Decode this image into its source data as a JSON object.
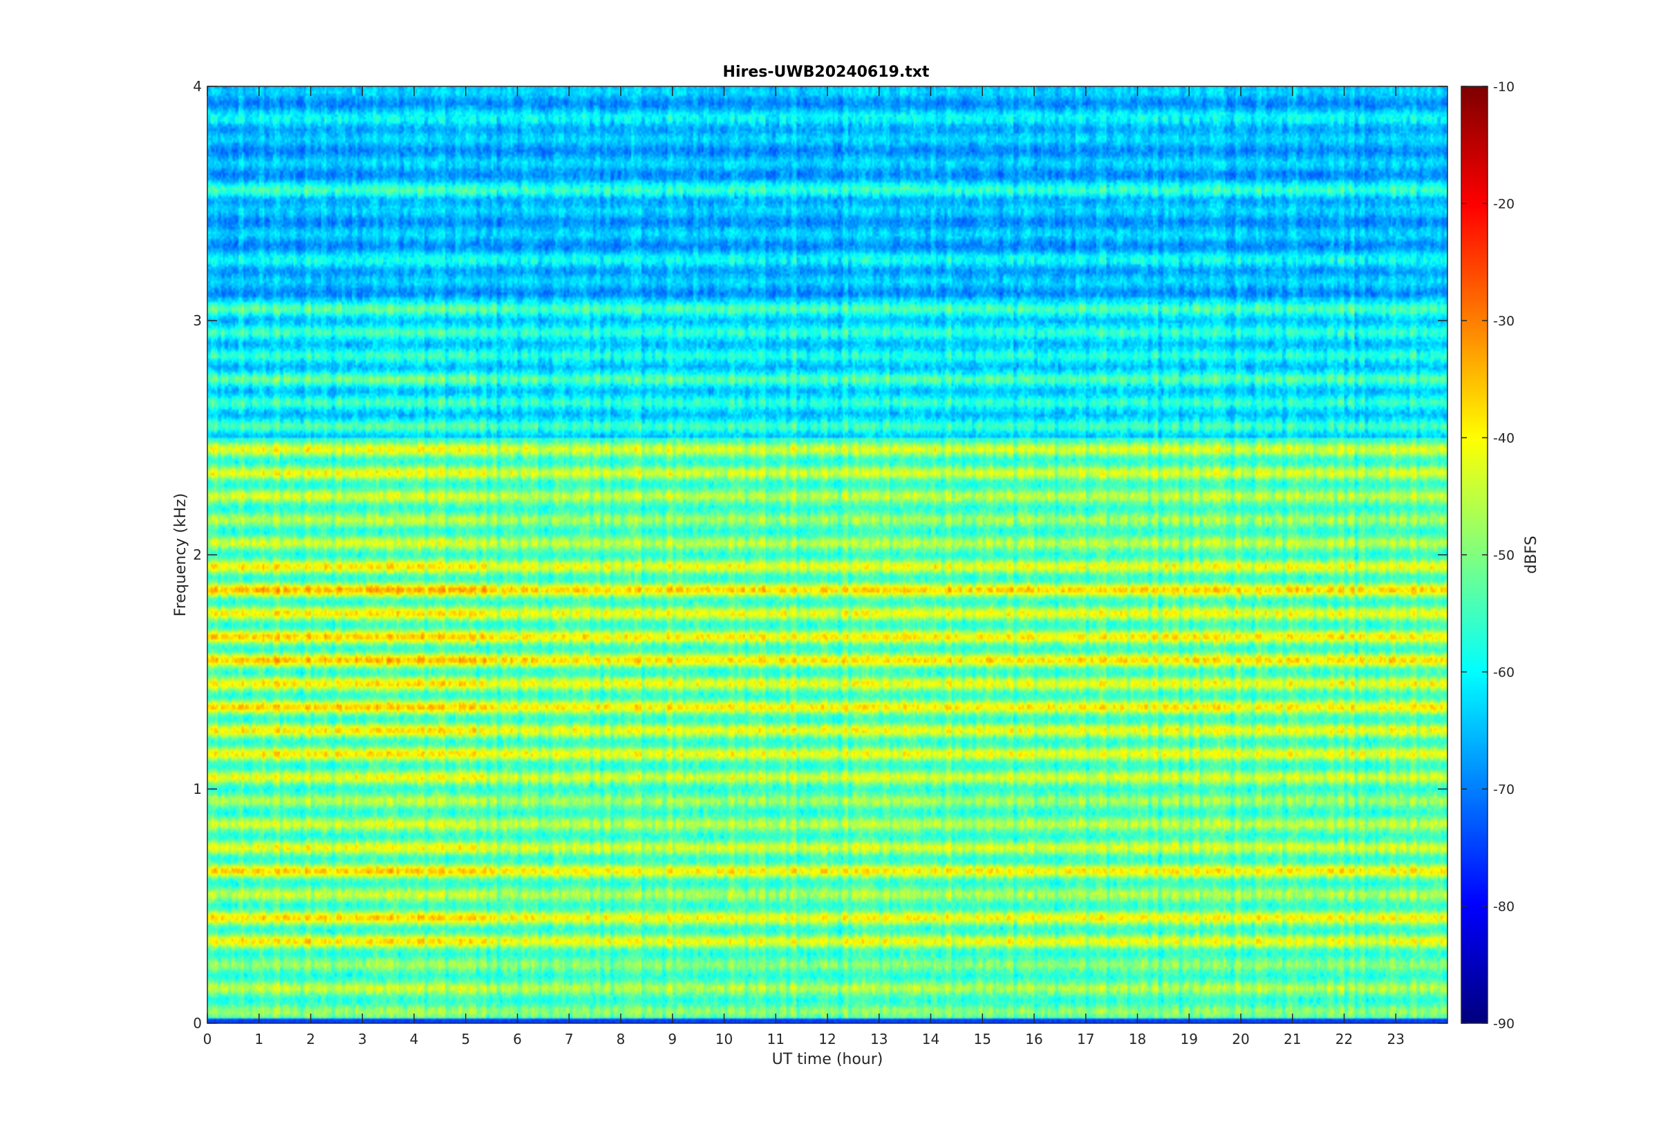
{
  "chart_data": {
    "type": "heatmap",
    "title": "Hires-UWB20240619.txt",
    "xlabel": "UT time (hour)",
    "ylabel": "Frequency (kHz)",
    "xlim": [
      0,
      24
    ],
    "ylim": [
      0,
      4
    ],
    "x_ticks": [
      0,
      1,
      2,
      3,
      4,
      5,
      6,
      7,
      8,
      9,
      10,
      11,
      12,
      13,
      14,
      15,
      16,
      17,
      18,
      19,
      20,
      21,
      22,
      23
    ],
    "x_tick_labels": [
      "0",
      "1",
      "2",
      "3",
      "4",
      "5",
      "6",
      "7",
      "8",
      "9",
      "10",
      "11",
      "12",
      "13",
      "14",
      "15",
      "16",
      "17",
      "18",
      "19",
      "20",
      "21",
      "22",
      "23"
    ],
    "y_ticks": [
      0,
      1,
      2,
      3,
      4
    ],
    "y_tick_labels": [
      "0",
      "1",
      "2",
      "3",
      "4"
    ],
    "colorbar": {
      "label": "dBFS",
      "colormap": "jet",
      "clim": [
        -90,
        -10
      ],
      "ticks": [
        -10,
        -20,
        -30,
        -40,
        -50,
        -60,
        -70,
        -80,
        -90
      ],
      "tick_labels": [
        "-10",
        "-20",
        "-30",
        "-40",
        "-50",
        "-60",
        "-70",
        "-80",
        "-90"
      ]
    },
    "background_level_dbfs": -62,
    "upper_band_level_dbfs": -66,
    "lower_band_level_dbfs": -58,
    "bands": [
      {
        "freq_khz": 0.05,
        "level_dbfs": -48
      },
      {
        "freq_khz": 0.15,
        "level_dbfs": -45
      },
      {
        "freq_khz": 0.25,
        "level_dbfs": -48
      },
      {
        "freq_khz": 0.35,
        "level_dbfs": -40
      },
      {
        "freq_khz": 0.45,
        "level_dbfs": -39
      },
      {
        "freq_khz": 0.55,
        "level_dbfs": -45
      },
      {
        "freq_khz": 0.65,
        "level_dbfs": -38
      },
      {
        "freq_khz": 0.75,
        "level_dbfs": -42
      },
      {
        "freq_khz": 0.85,
        "level_dbfs": -44
      },
      {
        "freq_khz": 0.95,
        "level_dbfs": -46
      },
      {
        "freq_khz": 1.05,
        "level_dbfs": -42
      },
      {
        "freq_khz": 1.15,
        "level_dbfs": -40
      },
      {
        "freq_khz": 1.25,
        "level_dbfs": -40
      },
      {
        "freq_khz": 1.35,
        "level_dbfs": -38
      },
      {
        "freq_khz": 1.45,
        "level_dbfs": -40
      },
      {
        "freq_khz": 1.55,
        "level_dbfs": -37
      },
      {
        "freq_khz": 1.65,
        "level_dbfs": -38
      },
      {
        "freq_khz": 1.75,
        "level_dbfs": -40
      },
      {
        "freq_khz": 1.85,
        "level_dbfs": -36
      },
      {
        "freq_khz": 1.95,
        "level_dbfs": -40
      },
      {
        "freq_khz": 2.05,
        "level_dbfs": -44
      },
      {
        "freq_khz": 2.15,
        "level_dbfs": -46
      },
      {
        "freq_khz": 2.25,
        "level_dbfs": -44
      },
      {
        "freq_khz": 2.35,
        "level_dbfs": -42
      },
      {
        "freq_khz": 2.45,
        "level_dbfs": -42
      },
      {
        "freq_khz": 2.55,
        "level_dbfs": -54
      },
      {
        "freq_khz": 2.65,
        "level_dbfs": -55
      },
      {
        "freq_khz": 2.75,
        "level_dbfs": -52
      },
      {
        "freq_khz": 2.85,
        "level_dbfs": -56
      },
      {
        "freq_khz": 2.95,
        "level_dbfs": -55
      },
      {
        "freq_khz": 3.05,
        "level_dbfs": -53
      },
      {
        "freq_khz": 3.25,
        "level_dbfs": -60
      },
      {
        "freq_khz": 3.55,
        "level_dbfs": -56
      },
      {
        "freq_khz": 3.85,
        "level_dbfs": -60
      }
    ],
    "bottom_edge_level_dbfs": -75,
    "early_hours_end": 5.5,
    "early_hours_boost_db": 3
  },
  "colors": {
    "axis_color": "#262626",
    "background": "#ffffff"
  }
}
